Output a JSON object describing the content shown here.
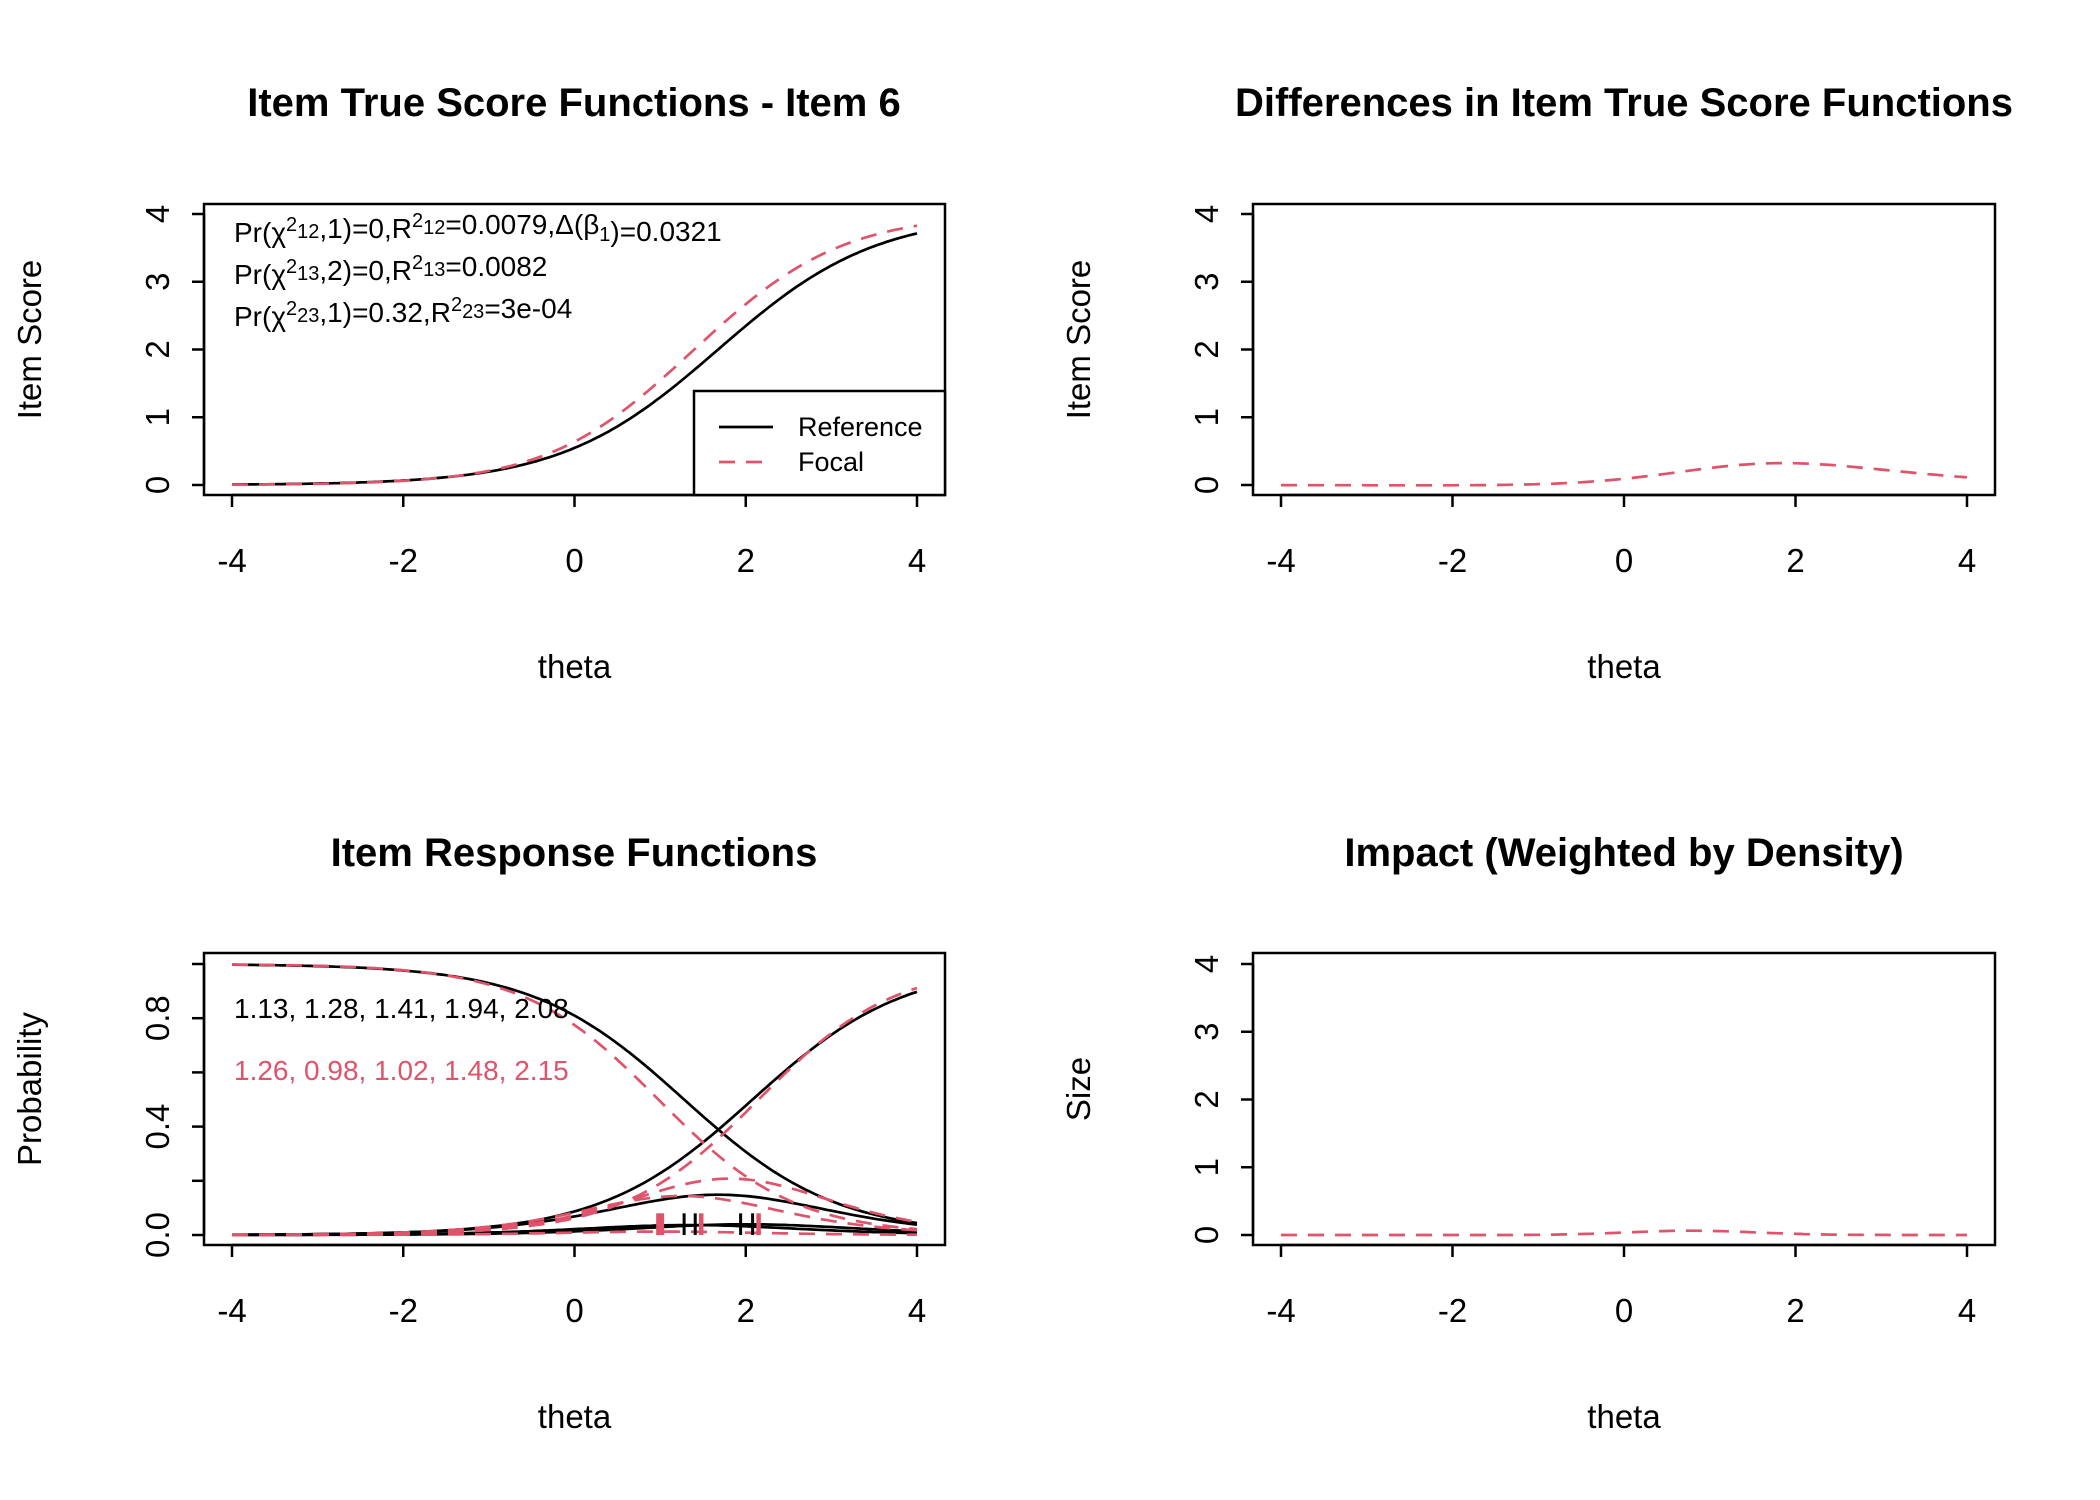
{
  "colors": {
    "reference": "#000000",
    "focal": "#DF536B"
  },
  "legend": {
    "placement": "bottom-right",
    "entries": [
      {
        "label": "Reference",
        "style": "solid",
        "color": "#000000"
      },
      {
        "label": "Focal",
        "style": "dashed",
        "color": "#DF536B"
      }
    ]
  },
  "model": {
    "type": "graded-response",
    "reference": {
      "a": 1.13,
      "b": [
        1.28,
        1.41,
        1.94,
        2.08
      ]
    },
    "focal": {
      "a": 1.26,
      "b": [
        0.98,
        1.02,
        1.48,
        2.15
      ]
    }
  },
  "chart_data": [
    {
      "type": "line",
      "title": "Item True Score Functions - Item 6",
      "xlabel": "theta",
      "ylabel": "Item Score",
      "xlim": [
        -4,
        4
      ],
      "ylim": [
        0,
        4
      ],
      "xticks": [
        "-4",
        "-2",
        "0",
        "2",
        "4"
      ],
      "yticks": [
        "0",
        "1",
        "2",
        "3",
        "4"
      ],
      "series": [
        {
          "name": "Reference",
          "quantity": "expected item score"
        },
        {
          "name": "Focal",
          "quantity": "expected item score"
        }
      ],
      "annotations": [
        [
          {
            "t": "Pr("
          },
          {
            "t": "χ"
          },
          {
            "sup": "2"
          },
          {
            "sub": "12"
          },
          {
            "t": ",1)=0,R"
          },
          {
            "sup": "2"
          },
          {
            "sub": "12"
          },
          {
            "t": "=0.0079,Δ(β"
          },
          {
            "sub": "1"
          },
          {
            "t": ")=0.0321"
          }
        ],
        [
          {
            "t": "Pr("
          },
          {
            "t": "χ"
          },
          {
            "sup": "2"
          },
          {
            "sub": "13"
          },
          {
            "t": ",2)=0,R"
          },
          {
            "sup": "2"
          },
          {
            "sub": "13"
          },
          {
            "t": "=0.0082"
          }
        ],
        [
          {
            "t": "Pr("
          },
          {
            "t": "χ"
          },
          {
            "sup": "2"
          },
          {
            "sub": "23"
          },
          {
            "t": ",1)=0.32,R"
          },
          {
            "sup": "2"
          },
          {
            "sub": "23"
          },
          {
            "t": "=3e-04"
          }
        ]
      ],
      "grid": false
    },
    {
      "type": "line",
      "title": "Differences in Item True Score Functions",
      "xlabel": "theta",
      "ylabel": "Item Score",
      "xlim": [
        -4,
        4
      ],
      "ylim": [
        0,
        4
      ],
      "xticks": [
        "-4",
        "-2",
        "0",
        "2",
        "4"
      ],
      "yticks": [
        "0",
        "1",
        "2",
        "3",
        "4"
      ],
      "series": [
        {
          "quantity": "focal minus reference expected score",
          "color": "#DF536B"
        }
      ],
      "grid": false
    },
    {
      "type": "line",
      "title": "Item Response Functions",
      "xlabel": "theta",
      "ylabel": "Probability",
      "xlim": [
        -4,
        4
      ],
      "ylim": [
        0,
        1
      ],
      "xticks": [
        "-4",
        "-2",
        "0",
        "2",
        "4"
      ],
      "yticks": [
        "0.0",
        "",
        "0.4",
        "",
        "0.8",
        ""
      ],
      "yticks_values": [
        0,
        0.2,
        0.4,
        0.6,
        0.8,
        1.0
      ],
      "labels": {
        "reference": "1.13, 1.28, 1.41, 1.94, 2.08",
        "focal": "1.26, 0.98, 1.02, 1.48, 2.15"
      },
      "series": [
        {
          "quantity": "category probabilities, reference"
        },
        {
          "quantity": "category probabilities, focal"
        }
      ],
      "grid": false
    },
    {
      "type": "line",
      "title": "Impact (Weighted by Density)",
      "xlabel": "theta",
      "ylabel": "Size",
      "xlim": [
        -4,
        4
      ],
      "ylim": [
        0,
        4
      ],
      "xticks": [
        "-4",
        "-2",
        "0",
        "2",
        "4"
      ],
      "yticks": [
        "0",
        "1",
        "2",
        "3",
        "4"
      ],
      "series": [
        {
          "quantity": "score difference weighted by normal density",
          "color": "#DF536B"
        }
      ],
      "grid": false
    }
  ]
}
